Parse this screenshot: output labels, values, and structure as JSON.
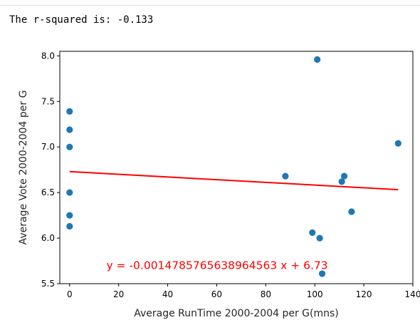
{
  "output": {
    "text": "The r-squared is: -0.133"
  },
  "chart_data": {
    "type": "scatter",
    "xlabel": "Average RunTime 2000-2004 per G(mns)",
    "ylabel": "Average Vote 2000-2004 per G",
    "xlim": [
      -4,
      140
    ],
    "ylim": [
      5.5,
      8.05
    ],
    "xticks": [
      0,
      20,
      40,
      60,
      80,
      100,
      120,
      140
    ],
    "xtick_labels": [
      "0",
      "20",
      "40",
      "60",
      "80",
      "100",
      "120",
      "140"
    ],
    "yticks": [
      5.5,
      6.0,
      6.5,
      7.0,
      7.5,
      8.0
    ],
    "ytick_labels": [
      "5.5",
      "6.0",
      "6.5",
      "7.0",
      "7.5",
      "8.0"
    ],
    "points": [
      {
        "x": 0,
        "y": 7.39
      },
      {
        "x": 0,
        "y": 7.19
      },
      {
        "x": 0,
        "y": 7.0
      },
      {
        "x": 0,
        "y": 6.5
      },
      {
        "x": 0,
        "y": 6.25
      },
      {
        "x": 0,
        "y": 6.13
      },
      {
        "x": 88,
        "y": 6.68
      },
      {
        "x": 99,
        "y": 6.06
      },
      {
        "x": 101,
        "y": 7.96
      },
      {
        "x": 102,
        "y": 6.0
      },
      {
        "x": 103,
        "y": 5.61
      },
      {
        "x": 111,
        "y": 6.62
      },
      {
        "x": 112,
        "y": 6.68
      },
      {
        "x": 115,
        "y": 6.29
      },
      {
        "x": 134,
        "y": 7.04
      }
    ],
    "regression": {
      "slope": -0.0014785765638964563,
      "intercept": 6.73,
      "x_range": [
        0,
        134
      ],
      "color": "#ff0000"
    },
    "annotation": {
      "text": "y = -0.0014785765638964563 x + 6.73",
      "x": 15,
      "y": 5.66,
      "color": "#ff0000"
    },
    "point_color": "#1f77b4",
    "grid": false
  }
}
